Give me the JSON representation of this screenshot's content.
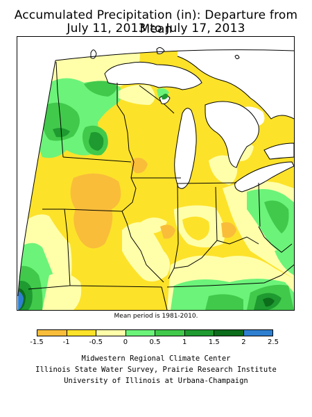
{
  "title": {
    "line1": "Accumulated Precipitation (in): Departure from Mean",
    "line2": "July 11, 2013 to July 17, 2013"
  },
  "map": {
    "note": "Mean period is 1981-2010.",
    "colors": {
      "lt_-1": "#f9bd3a",
      "-1_-0.5": "#fde22a",
      "-0.5_0": "#ffffaa",
      "0_0.5": "#6cf37a",
      "0.5_1": "#41c94b",
      "1_1.5": "#1e9a30",
      "1.5_2": "#0c6d1b",
      "gt_2": "#2f7fd0",
      "water": "#ffffff",
      "boundary": "#000000"
    }
  },
  "legend": {
    "colors": [
      "#f9bd3a",
      "#fde22a",
      "#ffffaa",
      "#6cf37a",
      "#41c94b",
      "#1e9a30",
      "#0c6d1b",
      "#2f7fd0"
    ],
    "labels": [
      "-1.5",
      "-1",
      "-0.5",
      "0",
      "0.5",
      "1",
      "1.5",
      "2",
      "2.5"
    ]
  },
  "credits": {
    "line1": "Midwestern Regional Climate Center",
    "line2": "Illinois State Water Survey, Prairie Research Institute",
    "line3": "University of Illinois at Urbana-Champaign"
  }
}
